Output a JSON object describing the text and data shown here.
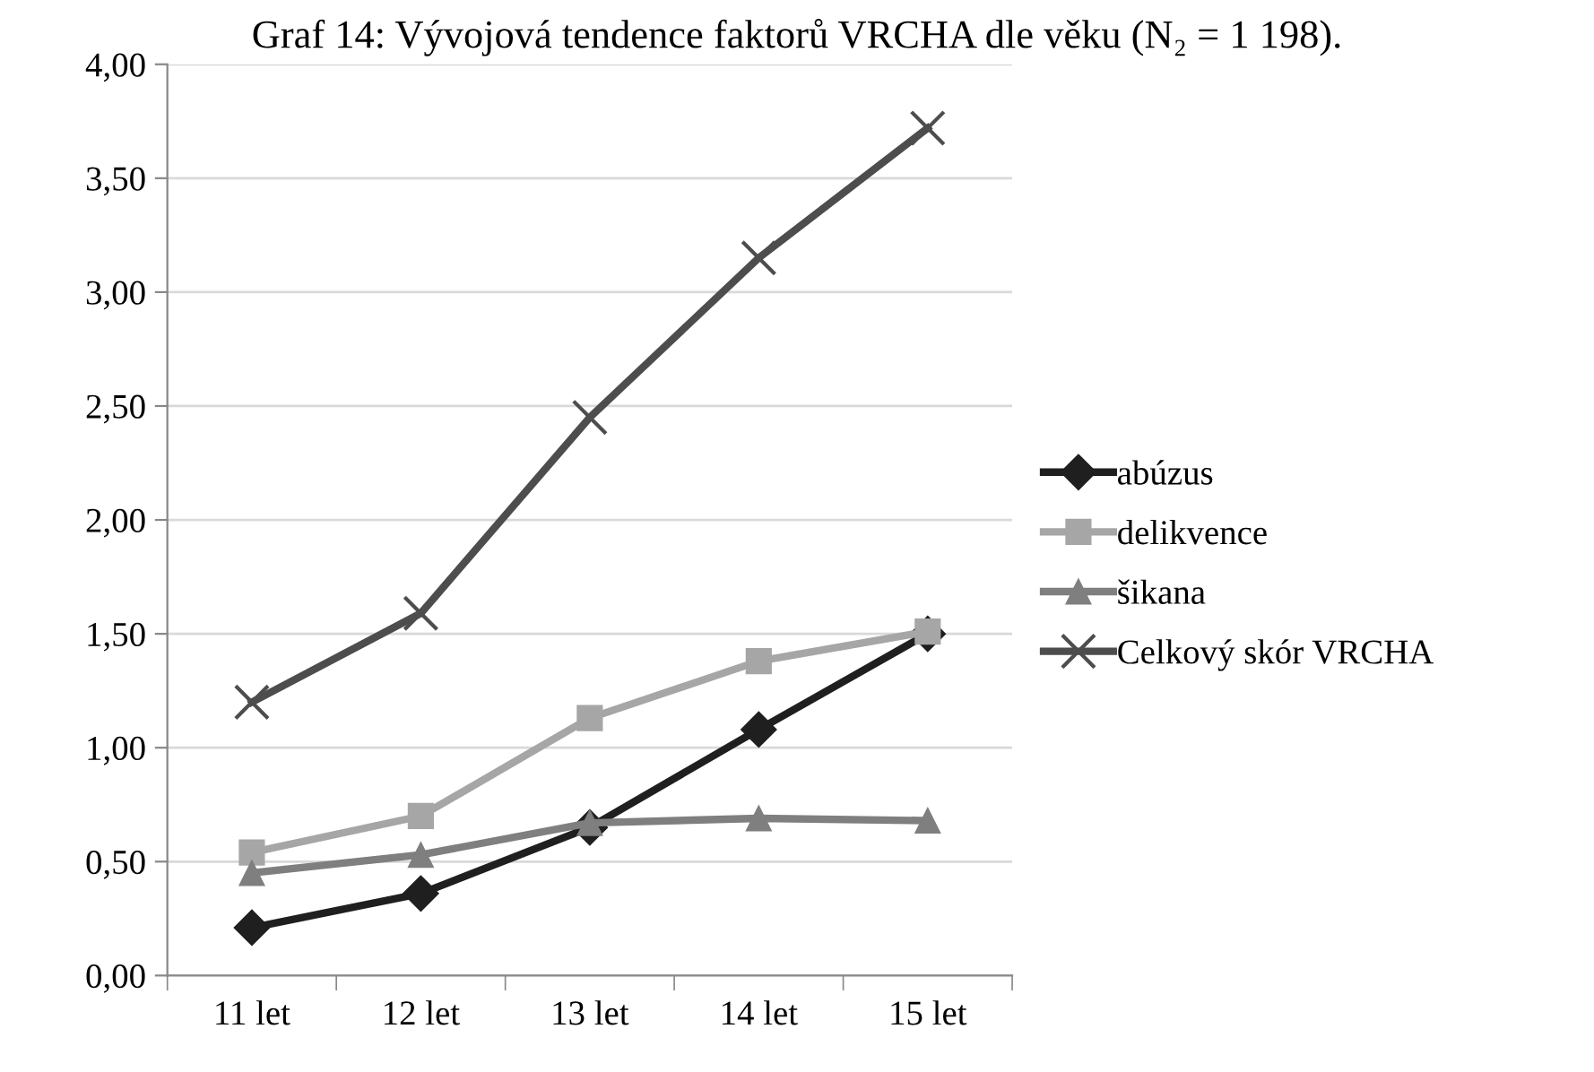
{
  "chart_data": {
    "type": "line",
    "title": "Graf 14: Vývojová tendence faktorů VRCHA dle věku (N₂ = 1 198).",
    "categories": [
      "11 let",
      "12 let",
      "13 let",
      "14 let",
      "15 let"
    ],
    "series": [
      {
        "name": "abúzus",
        "color": "#1f1f1f",
        "marker": "diamond",
        "values": [
          0.21,
          0.36,
          0.65,
          1.08,
          1.5
        ]
      },
      {
        "name": "delikvence",
        "color": "#a6a6a6",
        "marker": "square",
        "values": [
          0.54,
          0.7,
          1.13,
          1.38,
          1.51
        ]
      },
      {
        "name": "šikana",
        "color": "#7f7f7f",
        "marker": "triangle",
        "values": [
          0.45,
          0.53,
          0.67,
          0.69,
          0.68
        ]
      },
      {
        "name": "Celkový skór VRCHA",
        "color": "#4d4d4d",
        "marker": "cross",
        "values": [
          1.2,
          1.59,
          2.45,
          3.15,
          3.72
        ]
      }
    ],
    "ylim": [
      0,
      4
    ],
    "yticks": [
      {
        "value": 0,
        "label": "0,00"
      },
      {
        "value": 0.5,
        "label": "0,50"
      },
      {
        "value": 1,
        "label": "1,00"
      },
      {
        "value": 1.5,
        "label": "1,50"
      },
      {
        "value": 2,
        "label": "2,00"
      },
      {
        "value": 2.5,
        "label": "2,50"
      },
      {
        "value": 3,
        "label": "3,00"
      },
      {
        "value": 3.5,
        "label": "3,50"
      },
      {
        "value": 4,
        "label": "4,00"
      }
    ],
    "grid": "y",
    "legend": "right",
    "line_style": "solid"
  }
}
